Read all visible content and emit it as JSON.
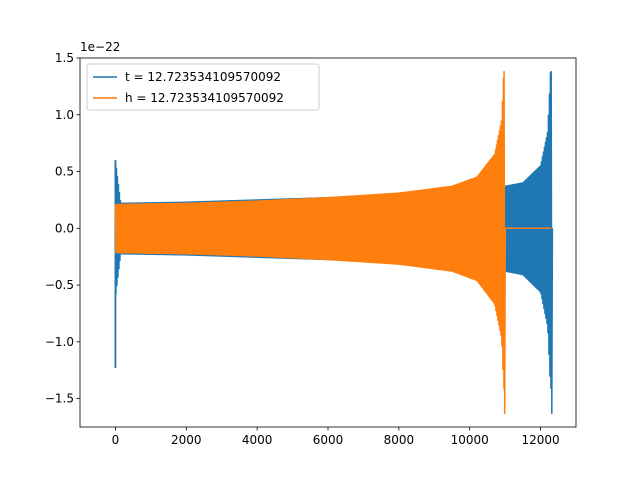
{
  "chart_data": {
    "type": "line",
    "title": "",
    "xlabel": "",
    "ylabel": "",
    "offset_text": "1e−22",
    "xlim": [
      -1000,
      13000
    ],
    "ylim": [
      -1.75,
      1.5
    ],
    "x_ticks": [
      0,
      2000,
      4000,
      6000,
      8000,
      10000,
      12000
    ],
    "x_tick_labels": [
      "0",
      "2000",
      "4000",
      "6000",
      "8000",
      "10000",
      "12000"
    ],
    "y_ticks": [
      -1.5,
      -1.0,
      -0.5,
      0.0,
      0.5,
      1.0,
      1.5
    ],
    "y_tick_labels": [
      "−1.5",
      "−1.0",
      "−0.5",
      "0.0",
      "0.5",
      "1.0",
      "1.5"
    ],
    "grid": false,
    "legend_position": "upper-left",
    "series": [
      {
        "name": "t = 12.723534109570092",
        "color": "#1f77b4",
        "x_range": [
          0,
          12300
        ],
        "initial_spike": {
          "x": 0,
          "max": 0.6,
          "min": -1.23
        },
        "envelope": [
          [
            0,
            0.6
          ],
          [
            150,
            0.22
          ],
          [
            2000,
            0.23
          ],
          [
            4000,
            0.25
          ],
          [
            6000,
            0.27
          ],
          [
            8000,
            0.3
          ],
          [
            10000,
            0.35
          ],
          [
            11000,
            0.37
          ],
          [
            11500,
            0.4
          ],
          [
            12000,
            0.55
          ],
          [
            12200,
            0.85
          ],
          [
            12280,
            1.38
          ]
        ],
        "min_peak": -1.63,
        "max_peak": 1.38,
        "end_x": 12300
      },
      {
        "name": "h = 12.723534109570092",
        "color": "#ff7f0e",
        "x_range": [
          0,
          12300
        ],
        "envelope": [
          [
            0,
            0.21
          ],
          [
            2000,
            0.22
          ],
          [
            4000,
            0.24
          ],
          [
            6000,
            0.27
          ],
          [
            8000,
            0.31
          ],
          [
            9500,
            0.37
          ],
          [
            10200,
            0.45
          ],
          [
            10700,
            0.65
          ],
          [
            10900,
            0.95
          ],
          [
            10960,
            1.38
          ]
        ],
        "min_peak": -1.63,
        "max_peak": 1.38,
        "end_x": 10970,
        "flat_after": {
          "x_start": 10970,
          "x_end": 12300,
          "value": 0.0
        }
      }
    ]
  }
}
